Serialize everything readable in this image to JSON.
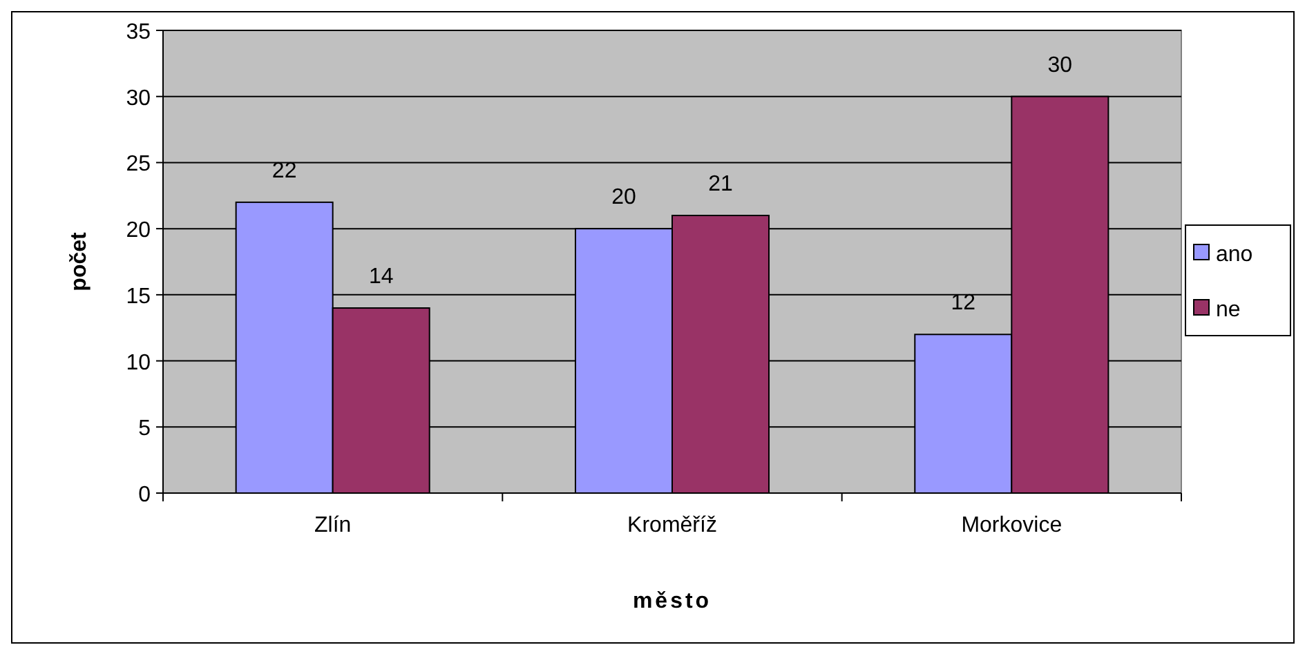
{
  "chart_data": {
    "type": "bar",
    "xlabel": "město",
    "ylabel": "počet",
    "categories": [
      "Zlín",
      "Kroměříž",
      "Morkovice"
    ],
    "series": [
      {
        "name": "ano",
        "color": "#9999ff",
        "values": [
          22,
          20,
          12
        ]
      },
      {
        "name": "ne",
        "color": "#993366",
        "values": [
          14,
          21,
          30
        ]
      }
    ],
    "ylim": [
      0,
      35
    ],
    "yticks": [
      0,
      5,
      10,
      15,
      20,
      25,
      30,
      35
    ],
    "grid": "y",
    "legend": "right",
    "data_labels": true
  }
}
